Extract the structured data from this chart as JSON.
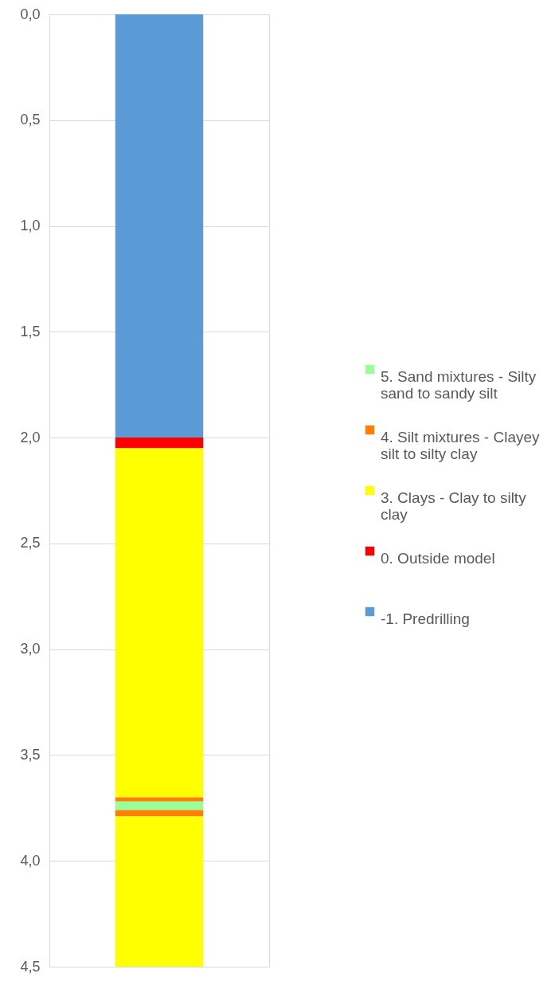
{
  "chart_data": {
    "type": "bar",
    "stacked": true,
    "categories": [
      null
    ],
    "series": [
      {
        "name": "-1. Predrilling",
        "color": "#5b9bd5",
        "values": [
          2.0
        ]
      },
      {
        "name": "0. Outside model",
        "color": "#ff0000",
        "values": [
          0.05
        ]
      },
      {
        "name": "3. Clays - Clay to silty clay",
        "color": "#ffff00",
        "values": [
          1.65
        ]
      },
      {
        "name": "4. Silt mixtures - Clayey silt to silty clay",
        "color": "#ff7f00",
        "values": [
          0.02
        ]
      },
      {
        "name": "5. Sand mixtures - Silty sand to sandy silt",
        "color": "#99ff99",
        "values": [
          0.04
        ]
      },
      {
        "color": "#ff7f00",
        "values": [
          0.03
        ]
      },
      {
        "color": "#ffff00",
        "values": [
          0.71
        ]
      }
    ],
    "ylim": [
      4.5,
      0
    ],
    "yticks": [
      {
        "value": 0,
        "label": "0,0"
      },
      {
        "value": 0.5,
        "label": "0,5"
      },
      {
        "value": 1,
        "label": "1,0"
      },
      {
        "value": 1.5,
        "label": "1,5"
      },
      {
        "value": 2,
        "label": "2,0"
      },
      {
        "value": 2.5,
        "label": "2,5"
      },
      {
        "value": 3,
        "label": "3,0"
      },
      {
        "value": 3.5,
        "label": "3,5"
      },
      {
        "value": 4,
        "label": "4,0"
      },
      {
        "value": 4.5,
        "label": "4,5"
      }
    ],
    "grid": "y",
    "legend": "right",
    "tick_labels": "y"
  }
}
